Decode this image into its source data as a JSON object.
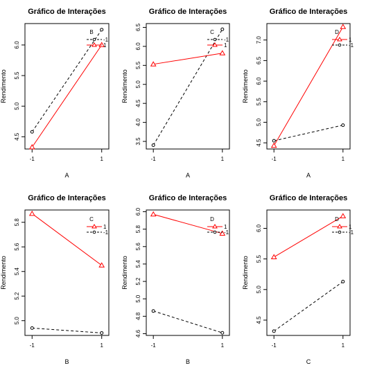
{
  "chart_data": [
    {
      "type": "line",
      "title": "Gráfico de Interações",
      "xlabel": "A",
      "ylabel": "Rendimento",
      "categories": [
        "-1",
        "1"
      ],
      "ylim": [
        4.3,
        6.35
      ],
      "yticks": [
        "4.5",
        "5.0",
        "5.5",
        "6.0"
      ],
      "legend_title": "B",
      "series": [
        {
          "name": "-1",
          "values": [
            4.58,
            6.25
          ],
          "color": "#000000",
          "dash": true,
          "marker": "circle"
        },
        {
          "name": "1",
          "values": [
            4.33,
            6.0
          ],
          "color": "#ff0000",
          "dash": false,
          "marker": "triangle"
        }
      ]
    },
    {
      "type": "line",
      "title": "Gráfico de Interações",
      "xlabel": "A",
      "ylabel": "Rendimento",
      "categories": [
        "-1",
        "1"
      ],
      "ylim": [
        3.3,
        6.6
      ],
      "yticks": [
        "3.5",
        "4.0",
        "4.5",
        "5.0",
        "5.5",
        "6.0",
        "6.5"
      ],
      "legend_title": "C",
      "series": [
        {
          "name": "-1",
          "values": [
            3.4,
            6.45
          ],
          "color": "#000000",
          "dash": true,
          "marker": "circle"
        },
        {
          "name": "1",
          "values": [
            5.53,
            5.82
          ],
          "color": "#ff0000",
          "dash": false,
          "marker": "triangle"
        }
      ]
    },
    {
      "type": "line",
      "title": "Gráfico de Interações",
      "xlabel": "A",
      "ylabel": "Rendimento",
      "categories": [
        "-1",
        "1"
      ],
      "ylim": [
        4.35,
        7.4
      ],
      "yticks": [
        "4.5",
        "5.0",
        "5.5",
        "6.0",
        "6.5",
        "7.0"
      ],
      "legend_title": "D",
      "series": [
        {
          "name": "1",
          "values": [
            4.43,
            7.32
          ],
          "color": "#ff0000",
          "dash": false,
          "marker": "triangle"
        },
        {
          "name": "-1",
          "values": [
            4.55,
            4.93
          ],
          "color": "#000000",
          "dash": true,
          "marker": "circle"
        }
      ]
    },
    {
      "type": "line",
      "title": "Gráfico de Interações",
      "xlabel": "B",
      "ylabel": "Rendimento",
      "categories": [
        "-1",
        "1"
      ],
      "ylim": [
        4.88,
        5.9
      ],
      "yticks": [
        "5.0",
        "5.2",
        "5.4",
        "5.6",
        "5.8"
      ],
      "legend_title": "C",
      "series": [
        {
          "name": "1",
          "values": [
            5.87,
            5.45
          ],
          "color": "#ff0000",
          "dash": false,
          "marker": "triangle"
        },
        {
          "name": "-1",
          "values": [
            4.94,
            4.9
          ],
          "color": "#000000",
          "dash": true,
          "marker": "circle"
        }
      ]
    },
    {
      "type": "line",
      "title": "Gráfico de Interações",
      "xlabel": "B",
      "ylabel": "Rendimento",
      "categories": [
        "-1",
        "1"
      ],
      "ylim": [
        4.58,
        6.02
      ],
      "yticks": [
        "4.6",
        "4.8",
        "5.0",
        "5.2",
        "5.4",
        "5.6",
        "5.8",
        "6.0"
      ],
      "legend_title": "D",
      "series": [
        {
          "name": "1",
          "values": [
            5.97,
            5.75
          ],
          "color": "#ff0000",
          "dash": false,
          "marker": "triangle"
        },
        {
          "name": "-1",
          "values": [
            4.86,
            4.61
          ],
          "color": "#000000",
          "dash": true,
          "marker": "circle"
        }
      ]
    },
    {
      "type": "line",
      "title": "Gráfico de Interações",
      "xlabel": "C",
      "ylabel": "Rendimento",
      "categories": [
        "-1",
        "1"
      ],
      "ylim": [
        4.25,
        6.3
      ],
      "yticks": [
        "4.5",
        "5.0",
        "5.5",
        "6.0"
      ],
      "legend_title": "D",
      "series": [
        {
          "name": "1",
          "values": [
            5.53,
            6.2
          ],
          "color": "#ff0000",
          "dash": false,
          "marker": "triangle"
        },
        {
          "name": "-1",
          "values": [
            4.32,
            5.13
          ],
          "color": "#000000",
          "dash": true,
          "marker": "circle"
        }
      ]
    }
  ]
}
